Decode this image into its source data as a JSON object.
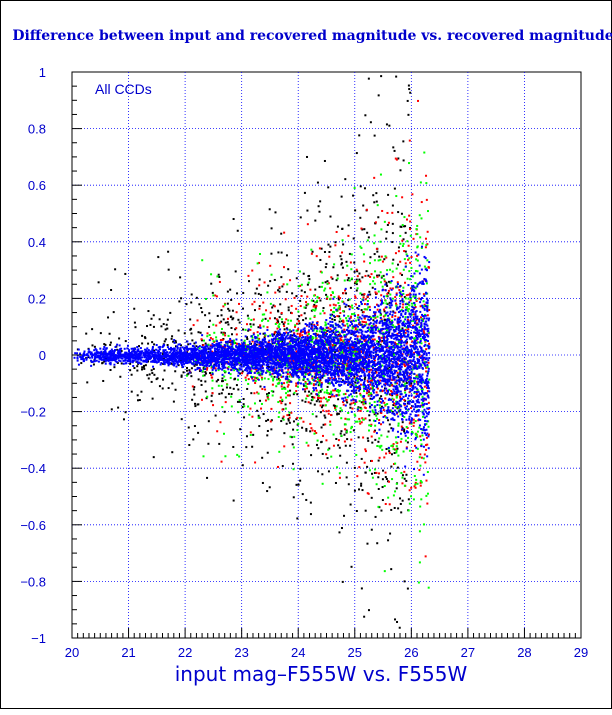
{
  "chart_data": {
    "type": "scatter",
    "title": "Difference between input and recovered magnitude vs. recovered magnitude",
    "xlabel": "input mag–F555W vs. F555W",
    "ylabel": "",
    "annotation": "All CCDs",
    "xlim": [
      20,
      29
    ],
    "ylim": [
      -1,
      1
    ],
    "x_ticks": [
      20,
      21,
      22,
      23,
      24,
      25,
      26,
      27,
      28,
      29
    ],
    "y_ticks": [
      -1,
      -0.8,
      -0.6,
      -0.4,
      -0.2,
      0,
      0.2,
      0.4,
      0.6,
      0.8,
      1
    ],
    "x_tick_labels": [
      "20",
      "21",
      "22",
      "23",
      "24",
      "25",
      "26",
      "27",
      "28",
      "29"
    ],
    "y_tick_labels": [
      "−1",
      "−0.8",
      "−0.6",
      "−0.4",
      "−0.2",
      "0",
      "0.2",
      "0.4",
      "0.6",
      "0.8",
      "1"
    ],
    "grid": true,
    "series": [
      {
        "color": "#0000ff",
        "description": "dense core scatter",
        "envelope": [
          [
            20,
            0.03
          ],
          [
            21,
            0.03
          ],
          [
            22,
            0.04
          ],
          [
            23,
            0.06
          ],
          [
            24,
            0.09
          ],
          [
            25,
            0.15
          ],
          [
            26,
            0.3
          ],
          [
            26.3,
            0.35
          ]
        ]
      },
      {
        "color": "#000000",
        "description": "outlier scatter",
        "envelope": [
          [
            20,
            0.07
          ],
          [
            21,
            0.08
          ],
          [
            22,
            0.14
          ],
          [
            23,
            0.22
          ],
          [
            24,
            0.35
          ],
          [
            25,
            0.6
          ],
          [
            26,
            0.9
          ]
        ]
      },
      {
        "color": "#ff0000",
        "description": "outlier scatter",
        "envelope": [
          [
            22,
            0.05
          ],
          [
            23,
            0.08
          ],
          [
            24,
            0.12
          ],
          [
            25,
            0.2
          ],
          [
            26,
            0.5
          ],
          [
            26.3,
            0.5
          ]
        ]
      },
      {
        "color": "#00ff00",
        "description": "outlier scatter",
        "envelope": [
          [
            22,
            0.05
          ],
          [
            23,
            0.08
          ],
          [
            24,
            0.12
          ],
          [
            25,
            0.2
          ],
          [
            26,
            0.5
          ],
          [
            26.3,
            0.5
          ]
        ]
      }
    ]
  },
  "colors": {
    "axis": "#000000",
    "text": "#0000cc",
    "grid": "#0000ff"
  }
}
